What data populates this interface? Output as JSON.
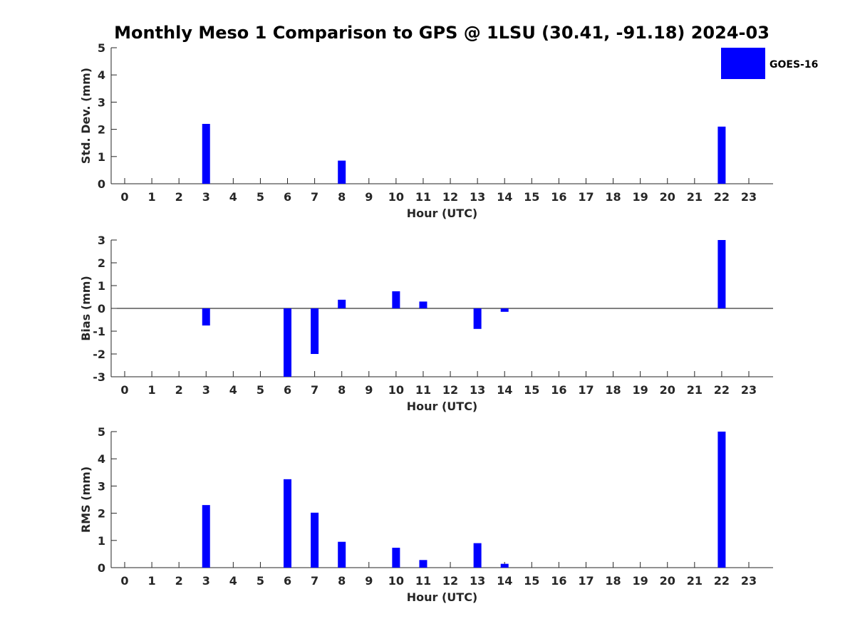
{
  "title": "Monthly Meso 1 Comparison to GPS @ 1LSU (30.41, -91.18) 2024-03",
  "colors": {
    "bar": "#0000ff",
    "axis": "#262626"
  },
  "legend": {
    "label": "GOES-16",
    "placement": "top-right"
  },
  "chart_data": [
    {
      "type": "bar",
      "ylabel": "Std. Dev. (mm)",
      "xlabel": "Hour (UTC)",
      "ylim": [
        0,
        5
      ],
      "yticks": [
        0,
        1,
        2,
        3,
        4,
        5
      ],
      "categories": [
        "0",
        "1",
        "2",
        "3",
        "4",
        "5",
        "6",
        "7",
        "8",
        "9",
        "10",
        "11",
        "12",
        "13",
        "14",
        "15",
        "16",
        "17",
        "18",
        "19",
        "20",
        "21",
        "22",
        "23"
      ],
      "series": [
        {
          "name": "GOES-16",
          "values": [
            null,
            null,
            null,
            2.2,
            null,
            null,
            null,
            null,
            0.85,
            null,
            null,
            null,
            null,
            null,
            null,
            null,
            null,
            null,
            null,
            null,
            null,
            null,
            2.1,
            null
          ]
        }
      ]
    },
    {
      "type": "bar",
      "ylabel": "Bias (mm)",
      "xlabel": "Hour (UTC)",
      "ylim": [
        -3,
        3
      ],
      "yticks": [
        -3,
        -2,
        -1,
        0,
        1,
        2,
        3
      ],
      "categories": [
        "0",
        "1",
        "2",
        "3",
        "4",
        "5",
        "6",
        "7",
        "8",
        "9",
        "10",
        "11",
        "12",
        "13",
        "14",
        "15",
        "16",
        "17",
        "18",
        "19",
        "20",
        "21",
        "22",
        "23"
      ],
      "series": [
        {
          "name": "GOES-16",
          "values": [
            null,
            null,
            null,
            -0.75,
            null,
            null,
            -3.0,
            -2.0,
            0.38,
            null,
            0.75,
            0.3,
            null,
            -0.9,
            -0.15,
            null,
            null,
            null,
            null,
            null,
            null,
            null,
            3.0,
            null
          ]
        }
      ]
    },
    {
      "type": "bar",
      "ylabel": "RMS (mm)",
      "xlabel": "Hour (UTC)",
      "ylim": [
        0,
        5
      ],
      "yticks": [
        0,
        1,
        2,
        3,
        4,
        5
      ],
      "categories": [
        "0",
        "1",
        "2",
        "3",
        "4",
        "5",
        "6",
        "7",
        "8",
        "9",
        "10",
        "11",
        "12",
        "13",
        "14",
        "15",
        "16",
        "17",
        "18",
        "19",
        "20",
        "21",
        "22",
        "23"
      ],
      "series": [
        {
          "name": "GOES-16",
          "values": [
            null,
            null,
            null,
            2.3,
            null,
            null,
            3.25,
            2.02,
            0.95,
            null,
            0.73,
            0.28,
            null,
            0.9,
            0.14,
            null,
            null,
            null,
            null,
            null,
            null,
            null,
            5.0,
            null
          ]
        }
      ]
    }
  ]
}
